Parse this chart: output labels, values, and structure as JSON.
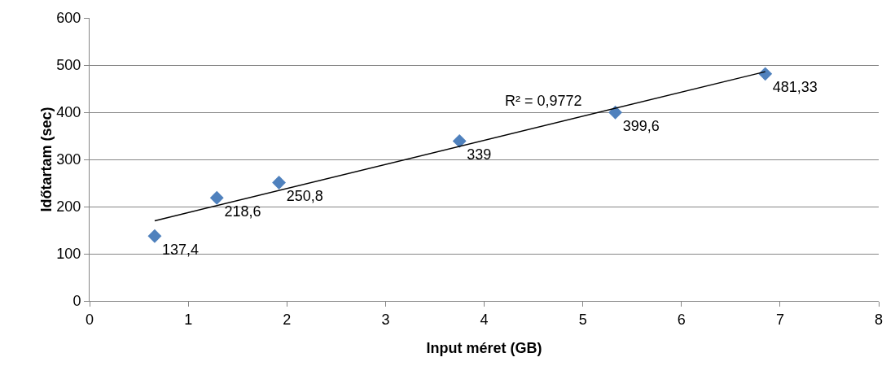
{
  "chart_data": {
    "type": "scatter",
    "xlabel": "Input méret (GB)",
    "ylabel": "Időtartam (sec)",
    "xlim": [
      0,
      8
    ],
    "xticks": [
      0,
      1,
      2,
      3,
      4,
      5,
      6,
      7,
      8
    ],
    "ylim": [
      0,
      600
    ],
    "yticks": [
      0,
      100,
      200,
      300,
      400,
      500,
      600
    ],
    "grid": "y",
    "marker": "diamond",
    "series": [
      {
        "color": "#4f81bd",
        "x": [
          0.66,
          1.29,
          1.92,
          3.75,
          5.33,
          6.85
        ],
        "values": [
          137.4,
          218.6,
          250.8,
          339,
          399.6,
          481.33
        ],
        "value_labels": [
          "137,4",
          "218,6",
          "250,8",
          "339",
          "399,6",
          "481,33"
        ]
      },
      {
        "type": "line",
        "color": "#000000",
        "marker": "none",
        "line_style": "solid",
        "x": [
          0.66,
          6.85
        ],
        "values": [
          170,
          486
        ]
      }
    ],
    "annotations": [
      "R² = 0,9772"
    ]
  }
}
